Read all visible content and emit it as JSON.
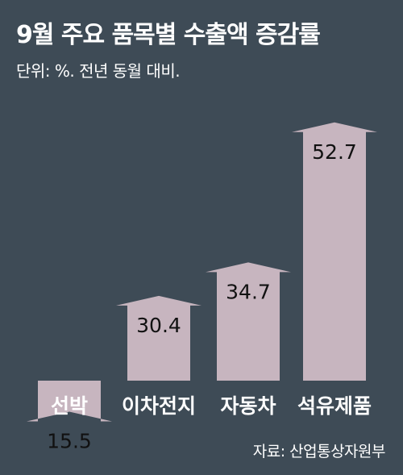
{
  "header": {
    "title": "9월 주요 품목별 수출액 증감률",
    "subtitle": "단위: %. 전년 동월 대비."
  },
  "footer": {
    "source": "자료: 산업통상자원부"
  },
  "colors": {
    "background": "#3e4b56",
    "arrow_fill": "#c7b5bf"
  },
  "chart_data": {
    "type": "bar",
    "title": "9월 주요 품목별 수출액 증감률",
    "subtitle": "단위: %. 전년 동월 대비.",
    "categories": [
      "선박",
      "이차전지",
      "자동차",
      "석유제품"
    ],
    "values": [
      15.5,
      30.4,
      34.7,
      52.7
    ],
    "value_labels": [
      "15.5",
      "30.4",
      "34.7",
      "52.7"
    ],
    "bar_shape": "arrow-up",
    "grid": false,
    "legend": "none"
  }
}
